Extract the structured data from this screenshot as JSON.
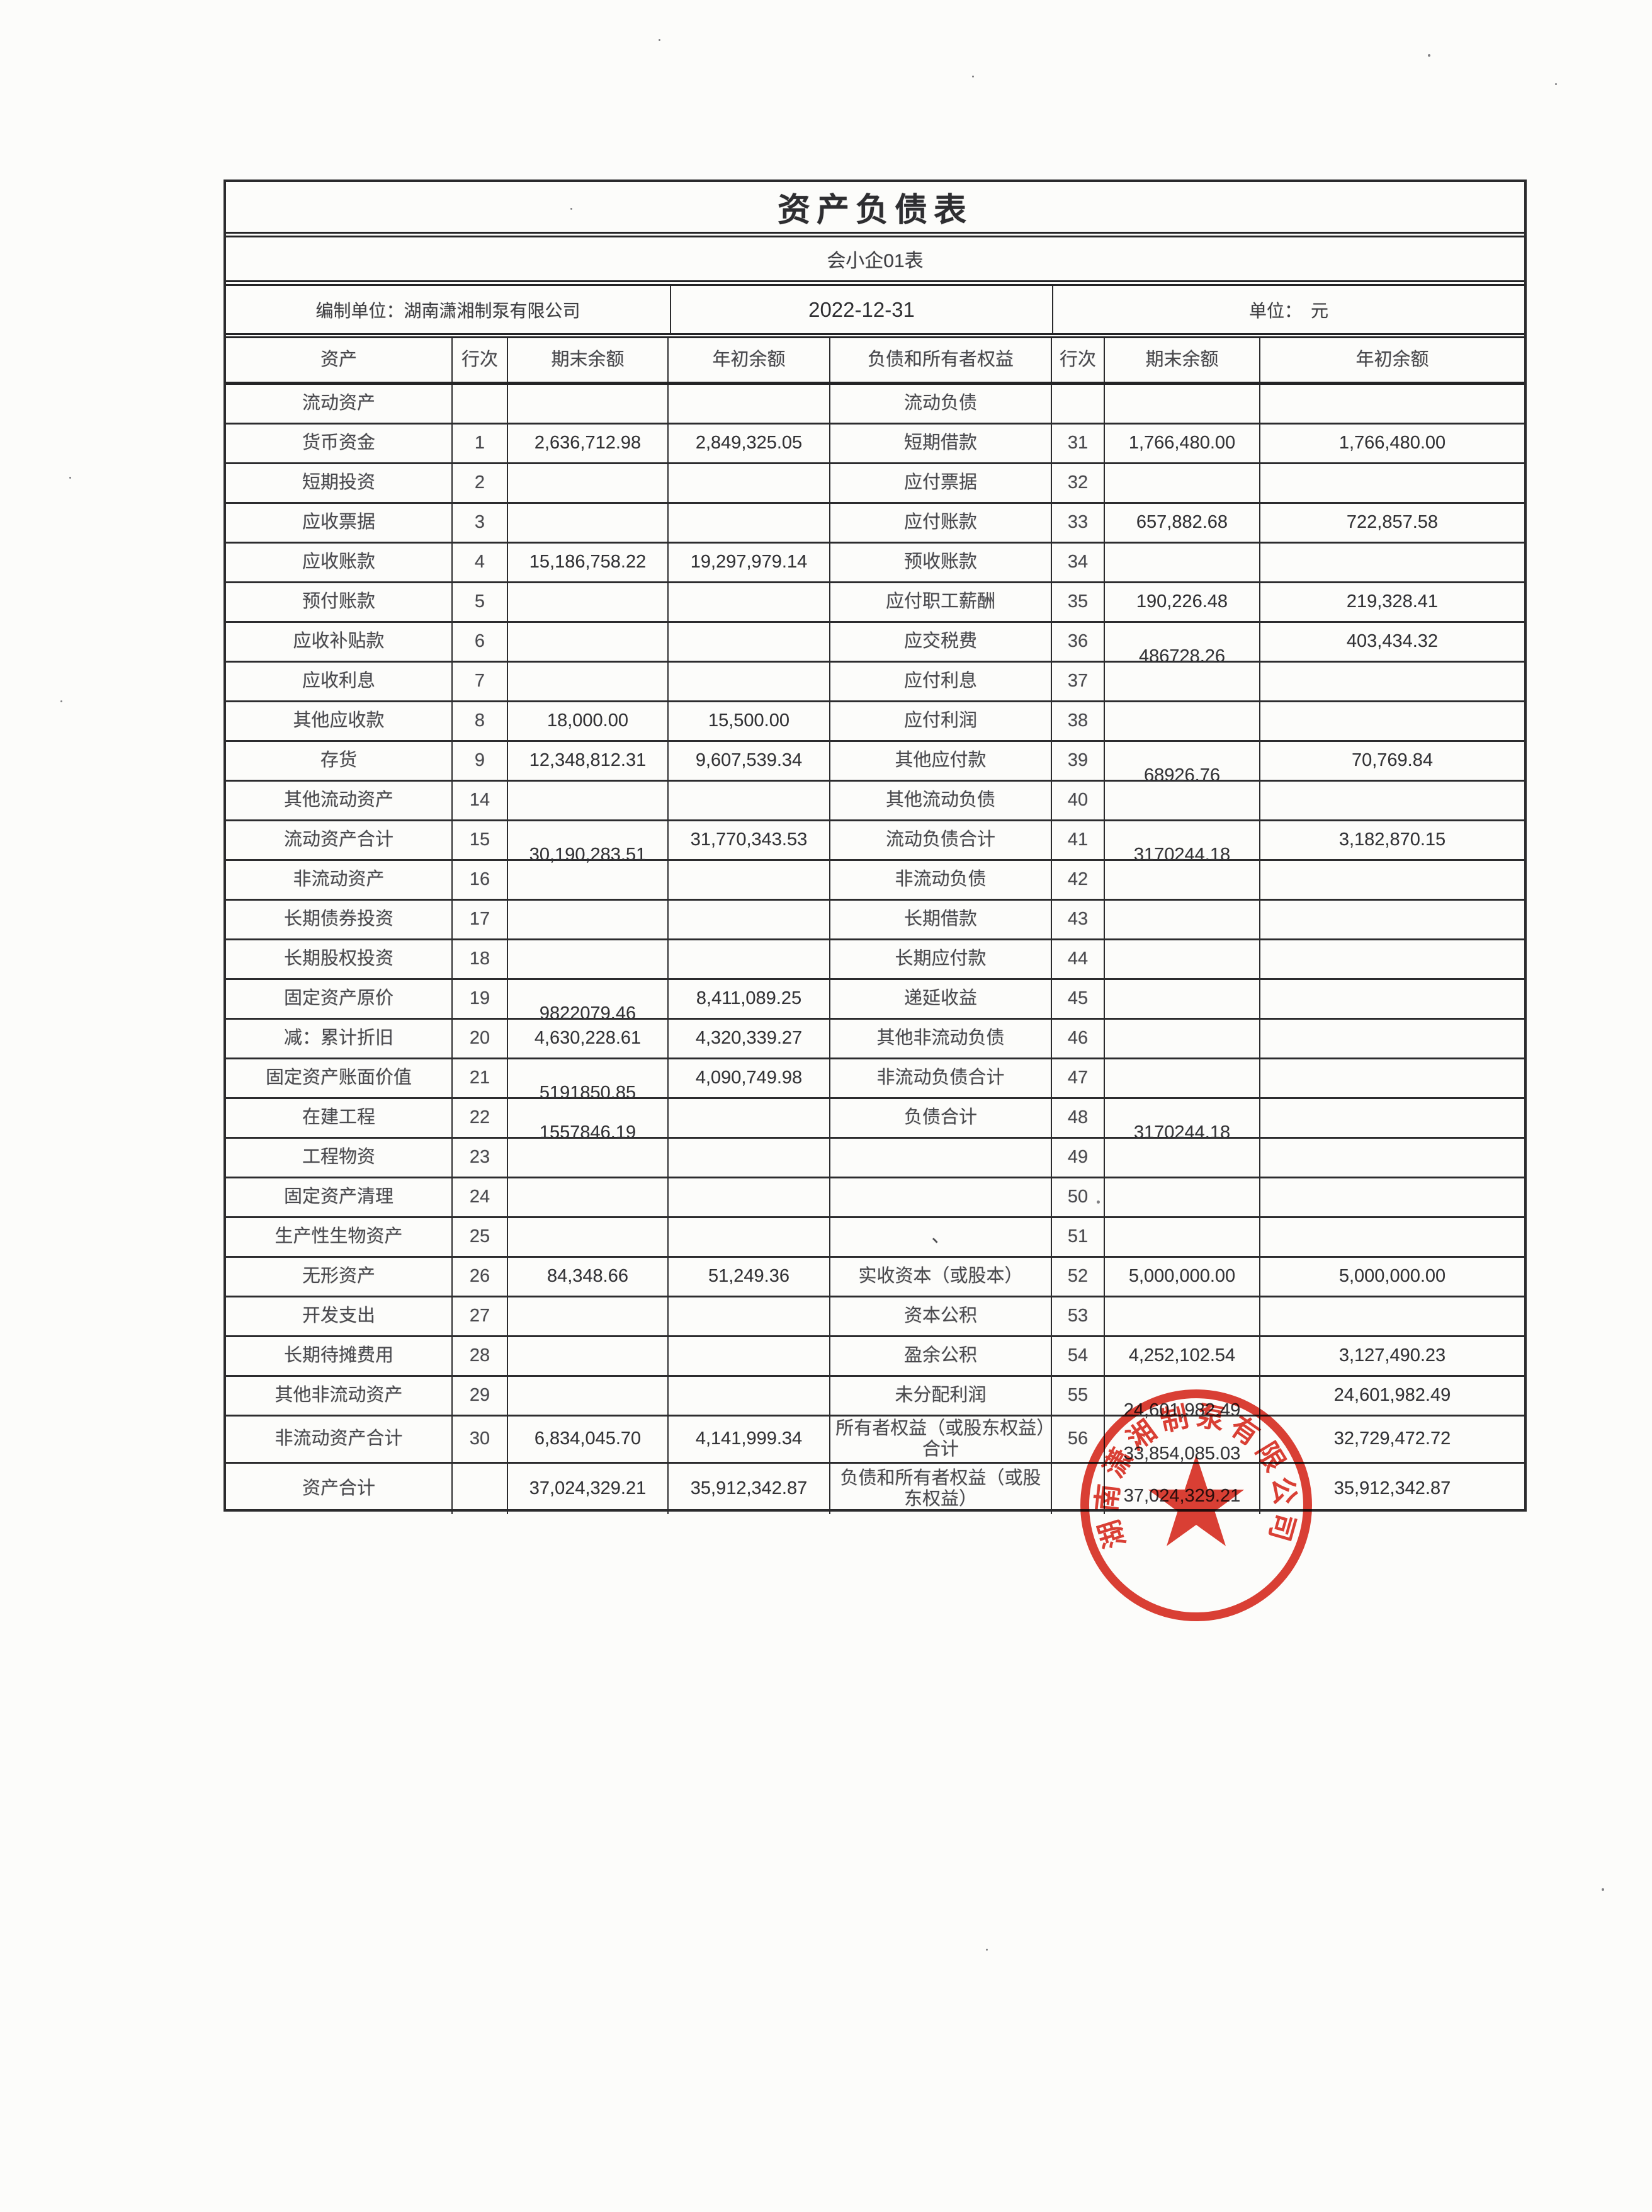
{
  "doc": {
    "title": "资产负债表",
    "subtitle": "会小企01表",
    "info": {
      "prepared_by": "编制单位：湖南潇湘制泵有限公司",
      "date": "2022-12-31",
      "unit": "单位：　元"
    }
  },
  "table": {
    "columns": [
      "资产",
      "行次",
      "期末余额",
      "年初余额",
      "负债和所有者权益",
      "行次",
      "期末余额",
      "年初余额"
    ],
    "rows": [
      {
        "asset": "流动资产",
        "asset_no": "",
        "asset_end": "",
        "asset_begin": "",
        "liab": "流动负债",
        "liab_no": "",
        "liab_end": "",
        "liab_begin": ""
      },
      {
        "asset": "货币资金",
        "asset_no": "1",
        "asset_end": "2,636,712.98",
        "asset_begin": "2,849,325.05",
        "liab": "短期借款",
        "liab_no": "31",
        "liab_end": "1,766,480.00",
        "liab_begin": "1,766,480.00"
      },
      {
        "asset": "短期投资",
        "asset_no": "2",
        "asset_end": "",
        "asset_begin": "",
        "liab": "应付票据",
        "liab_no": "32",
        "liab_end": "",
        "liab_begin": ""
      },
      {
        "asset": "应收票据",
        "asset_no": "3",
        "asset_end": "",
        "asset_begin": "",
        "liab": "应付账款",
        "liab_no": "33",
        "liab_end": "657,882.68",
        "liab_begin": "722,857.58"
      },
      {
        "asset": "应收账款",
        "asset_no": "4",
        "asset_end": "15,186,758.22",
        "asset_begin": "19,297,979.14",
        "liab": "预收账款",
        "liab_no": "34",
        "liab_end": "",
        "liab_begin": ""
      },
      {
        "asset": "预付账款",
        "asset_no": "5",
        "asset_end": "",
        "asset_begin": "",
        "liab": "应付职工薪酬",
        "liab_no": "35",
        "liab_end": "190,226.48",
        "liab_begin": "219,328.41"
      },
      {
        "asset": "应收补贴款",
        "asset_no": "6",
        "asset_end": "",
        "asset_begin": "",
        "liab": "应交税费",
        "liab_no": "36",
        "liab_end": "486728.26",
        "liab_end_low": true,
        "liab_begin": "403,434.32"
      },
      {
        "asset": "应收利息",
        "asset_no": "7",
        "asset_end": "",
        "asset_begin": "",
        "liab": "应付利息",
        "liab_no": "37",
        "liab_end": "",
        "liab_begin": ""
      },
      {
        "asset": "其他应收款",
        "asset_no": "8",
        "asset_end": "18,000.00",
        "asset_begin": "15,500.00",
        "liab": "应付利润",
        "liab_no": "38",
        "liab_end": "",
        "liab_begin": ""
      },
      {
        "asset": "存货",
        "asset_no": "9",
        "asset_end": "12,348,812.31",
        "asset_begin": "9,607,539.34",
        "liab": "其他应付款",
        "liab_no": "39",
        "liab_end": "68926.76",
        "liab_end_low": true,
        "liab_begin": "70,769.84"
      },
      {
        "asset": "其他流动资产",
        "asset_no": "14",
        "asset_end": "",
        "asset_begin": "",
        "liab": "其他流动负债",
        "liab_no": "40",
        "liab_end": "",
        "liab_begin": ""
      },
      {
        "asset": "流动资产合计",
        "asset_no": "15",
        "asset_end": "30,190,283.51",
        "asset_end_low": true,
        "asset_begin": "31,770,343.53",
        "liab": "流动负债合计",
        "liab_no": "41",
        "liab_end": "3170244.18",
        "liab_end_low": true,
        "liab_begin": "3,182,870.15"
      },
      {
        "asset": "非流动资产",
        "asset_no": "16",
        "asset_end": "",
        "asset_begin": "",
        "liab": "非流动负债",
        "liab_no": "42",
        "liab_end": "",
        "liab_begin": ""
      },
      {
        "asset": "长期债券投资",
        "asset_no": "17",
        "asset_end": "",
        "asset_begin": "",
        "liab": "长期借款",
        "liab_no": "43",
        "liab_end": "",
        "liab_begin": ""
      },
      {
        "asset": "长期股权投资",
        "asset_no": "18",
        "asset_end": "",
        "asset_begin": "",
        "liab": "长期应付款",
        "liab_no": "44",
        "liab_end": "",
        "liab_begin": ""
      },
      {
        "asset": "固定资产原价",
        "asset_no": "19",
        "asset_end": "9822079.46",
        "asset_end_low": true,
        "asset_begin": "8,411,089.25",
        "liab": "递延收益",
        "liab_no": "45",
        "liab_end": "",
        "liab_begin": ""
      },
      {
        "asset": "减：累计折旧",
        "asset_no": "20",
        "asset_end": "4,630,228.61",
        "asset_begin": "4,320,339.27",
        "liab": "其他非流动负债",
        "liab_no": "46",
        "liab_end": "",
        "liab_begin": ""
      },
      {
        "asset": "固定资产账面价值",
        "asset_no": "21",
        "asset_end": "5191850.85",
        "asset_end_low": true,
        "asset_begin": "4,090,749.98",
        "liab": "非流动负债合计",
        "liab_no": "47",
        "liab_end": "",
        "liab_begin": ""
      },
      {
        "asset": "在建工程",
        "asset_no": "22",
        "asset_end": "1557846.19",
        "asset_end_low": true,
        "asset_begin": "",
        "liab": "负债合计",
        "liab_no": "48",
        "liab_end": "3170244.18",
        "liab_end_low": true,
        "liab_begin": ""
      },
      {
        "asset": "工程物资",
        "asset_no": "23",
        "asset_end": "",
        "asset_begin": "",
        "liab": "",
        "liab_no": "49",
        "liab_end": "",
        "liab_begin": ""
      },
      {
        "asset": "固定资产清理",
        "asset_no": "24",
        "asset_end": "",
        "asset_begin": "",
        "liab": "",
        "liab_no": "50",
        "liab_end": "",
        "liab_begin": ""
      },
      {
        "asset": "生产性生物资产",
        "asset_no": "25",
        "asset_end": "",
        "asset_begin": "",
        "liab": "、",
        "liab_no": "51",
        "liab_end": "",
        "liab_begin": ""
      },
      {
        "asset": "无形资产",
        "asset_no": "26",
        "asset_end": "84,348.66",
        "asset_begin": "51,249.36",
        "liab": "实收资本（或股本）",
        "liab_no": "52",
        "liab_end": "5,000,000.00",
        "liab_begin": "5,000,000.00"
      },
      {
        "asset": "开发支出",
        "asset_no": "27",
        "asset_end": "",
        "asset_begin": "",
        "liab": "资本公积",
        "liab_no": "53",
        "liab_end": "",
        "liab_begin": ""
      },
      {
        "asset": "长期待摊费用",
        "asset_no": "28",
        "asset_end": "",
        "asset_begin": "",
        "liab": "盈余公积",
        "liab_no": "54",
        "liab_end": "4,252,102.54",
        "liab_begin": "3,127,490.23"
      },
      {
        "asset": "其他非流动资产",
        "asset_no": "29",
        "asset_end": "",
        "asset_begin": "",
        "liab": "未分配利润",
        "liab_no": "55",
        "liab_end": "24,601,982.49",
        "liab_end_low": true,
        "liab_begin": "24,601,982.49"
      },
      {
        "asset": "非流动资产合计",
        "asset_no": "30",
        "asset_end": "6,834,045.70",
        "asset_begin": "4,141,999.34",
        "liab": "所有者权益（或股东权益）合计",
        "liab_no": "56",
        "liab_end": "33,854,085.03",
        "liab_end_low": true,
        "liab_begin": "32,729,472.72"
      },
      {
        "asset": "资产合计",
        "asset_no": "",
        "asset_end": "37,024,329.21",
        "asset_begin": "35,912,342.87",
        "liab": "负债和所有者权益（或股东权益）",
        "liab_no": "",
        "liab_end": "37,024,329.21",
        "liab_end_low2": true,
        "liab_begin": "35,912,342.87"
      }
    ]
  },
  "stamp": {
    "company": "湖南潇湘制泵有限公司",
    "color": "#da3125"
  }
}
